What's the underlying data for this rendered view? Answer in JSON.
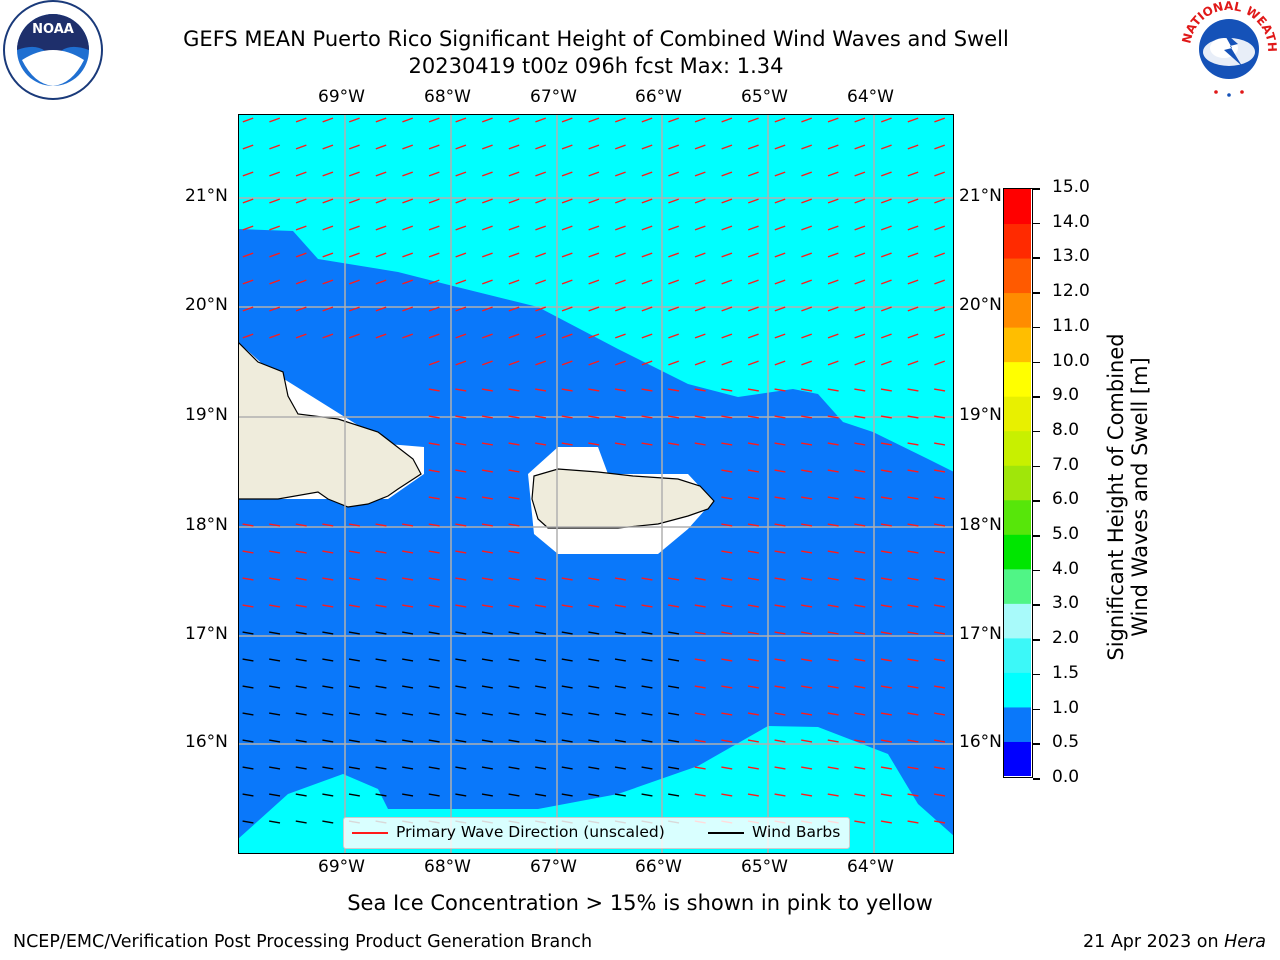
{
  "title": {
    "line1": "GEFS MEAN Puerto Rico Significant Height of Combined Wind Waves and Swell",
    "line2": "20230419 t00z 096h fcst   Max: 1.34"
  },
  "logos": {
    "left": "NOAA",
    "right": "NATIONAL WEATHER SERVICE"
  },
  "map": {
    "lon_ticks": [
      "69°W",
      "68°W",
      "67°W",
      "66°W",
      "65°W",
      "64°W"
    ],
    "lat_ticks": [
      "21°N",
      "20°N",
      "19°N",
      "18°N",
      "17°N",
      "16°N"
    ]
  },
  "legend": {
    "wave": "Primary Wave Direction (unscaled)",
    "barbs": "Wind Barbs"
  },
  "colorbar": {
    "title_line1": "Significant Height of Combined",
    "title_line2": "Wind Waves and Swell [m]",
    "levels": [
      "0.0",
      "0.5",
      "1.0",
      "1.5",
      "2.0",
      "3.0",
      "4.0",
      "5.0",
      "6.0",
      "7.0",
      "8.0",
      "9.0",
      "10.0",
      "11.0",
      "12.0",
      "13.0",
      "14.0",
      "15.0"
    ],
    "colors": [
      "#0000ff",
      "#0a78fa",
      "#00ffff",
      "#3cf8f8",
      "#a8fafa",
      "#50f586",
      "#00e600",
      "#57e60a",
      "#a0e60a",
      "#c8f000",
      "#e8f000",
      "#ffff00",
      "#ffbe00",
      "#ff8c00",
      "#ff5a00",
      "#ff2a00",
      "#ff0000"
    ]
  },
  "note": "Sea Ice Concentration > 15% is shown in pink to yellow",
  "footer": {
    "left": "NCEP/EMC/Verification Post Processing Product Generation Branch",
    "date": "21 Apr 2023 on ",
    "machine": "Hera"
  }
}
